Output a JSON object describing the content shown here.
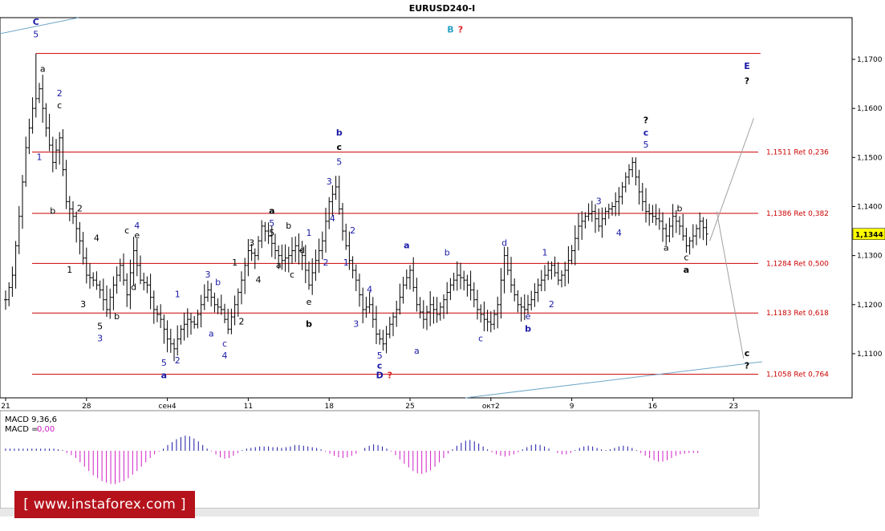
{
  "chart_data": {
    "type": "ohlc",
    "title": "EURUSD240-I",
    "price_axis": {
      "ticks": [
        "1,1700",
        "1,1600",
        "1,1500",
        "1,1400",
        "1,1300",
        "1,1200",
        "1,1100"
      ],
      "tick_values": [
        1.17,
        1.16,
        1.15,
        1.14,
        1.13,
        1.12,
        1.11
      ],
      "ylim": [
        1.101,
        1.1785
      ],
      "current_price": "1,1344",
      "current_value": 1.1344
    },
    "time_axis": {
      "ticks": [
        "21",
        "28",
        "сен4",
        "11",
        "18",
        "25",
        "окт2",
        "9",
        "16",
        "23"
      ],
      "tick_index": [
        0,
        24,
        48,
        72,
        96,
        120,
        144,
        168,
        192,
        216
      ],
      "bars_visible": 226
    },
    "retracement_levels": [
      {
        "label": "1,1511 Ret 0,236",
        "value": 1.1511
      },
      {
        "label": "1,1386 Ret 0,382",
        "value": 1.1386
      },
      {
        "label": "1,1284 Ret 0,500",
        "value": 1.1284
      },
      {
        "label": "1,1183 Ret 0,618",
        "value": 1.1183
      },
      {
        "label": "1,1058 Ret 0,764",
        "value": 1.1058
      }
    ],
    "top_level": {
      "value": 1.1712,
      "from_index": 9,
      "to_index": 224
    },
    "price_path": [
      [
        0,
        1.121
      ],
      [
        2,
        1.126
      ],
      [
        4,
        1.138
      ],
      [
        6,
        1.152
      ],
      [
        8,
        1.16
      ],
      [
        10,
        1.164
      ],
      [
        12,
        1.156
      ],
      [
        14,
        1.149
      ],
      [
        16,
        1.154
      ],
      [
        18,
        1.141
      ],
      [
        20,
        1.138
      ],
      [
        22,
        1.133
      ],
      [
        24,
        1.126
      ],
      [
        26,
        1.125
      ],
      [
        28,
        1.123
      ],
      [
        30,
        1.119
      ],
      [
        32,
        1.124
      ],
      [
        34,
        1.128
      ],
      [
        36,
        1.122
      ],
      [
        38,
        1.131
      ],
      [
        40,
        1.125
      ],
      [
        42,
        1.124
      ],
      [
        44,
        1.119
      ],
      [
        46,
        1.117
      ],
      [
        48,
        1.113
      ],
      [
        50,
        1.111
      ],
      [
        52,
        1.115
      ],
      [
        54,
        1.117
      ],
      [
        56,
        1.116
      ],
      [
        58,
        1.12
      ],
      [
        60,
        1.123
      ],
      [
        62,
        1.12
      ],
      [
        64,
        1.119
      ],
      [
        66,
        1.115
      ],
      [
        68,
        1.12
      ],
      [
        70,
        1.125
      ],
      [
        72,
        1.131
      ],
      [
        74,
        1.13
      ],
      [
        76,
        1.136
      ],
      [
        78,
        1.134
      ],
      [
        80,
        1.131
      ],
      [
        82,
        1.129
      ],
      [
        84,
        1.13
      ],
      [
        86,
        1.132
      ],
      [
        88,
        1.13
      ],
      [
        90,
        1.124
      ],
      [
        92,
        1.129
      ],
      [
        94,
        1.133
      ],
      [
        96,
        1.141
      ],
      [
        98,
        1.144
      ],
      [
        100,
        1.135
      ],
      [
        102,
        1.129
      ],
      [
        104,
        1.125
      ],
      [
        106,
        1.119
      ],
      [
        108,
        1.12
      ],
      [
        110,
        1.114
      ],
      [
        112,
        1.112
      ],
      [
        114,
        1.116
      ],
      [
        116,
        1.119
      ],
      [
        118,
        1.124
      ],
      [
        120,
        1.127
      ],
      [
        122,
        1.12
      ],
      [
        124,
        1.117
      ],
      [
        126,
        1.12
      ],
      [
        128,
        1.118
      ],
      [
        130,
        1.121
      ],
      [
        132,
        1.124
      ],
      [
        134,
        1.126
      ],
      [
        136,
        1.125
      ],
      [
        138,
        1.123
      ],
      [
        140,
        1.119
      ],
      [
        142,
        1.117
      ],
      [
        144,
        1.116
      ],
      [
        146,
        1.12
      ],
      [
        148,
        1.13
      ],
      [
        150,
        1.124
      ],
      [
        152,
        1.12
      ],
      [
        154,
        1.119
      ],
      [
        156,
        1.121
      ],
      [
        158,
        1.124
      ],
      [
        160,
        1.126
      ],
      [
        162,
        1.128
      ],
      [
        164,
        1.125
      ],
      [
        166,
        1.127
      ],
      [
        168,
        1.131
      ],
      [
        170,
        1.136
      ],
      [
        172,
        1.138
      ],
      [
        174,
        1.139
      ],
      [
        176,
        1.136
      ],
      [
        178,
        1.139
      ],
      [
        180,
        1.14
      ],
      [
        182,
        1.142
      ],
      [
        184,
        1.146
      ],
      [
        186,
        1.149
      ],
      [
        188,
        1.143
      ],
      [
        190,
        1.139
      ],
      [
        192,
        1.138
      ],
      [
        194,
        1.137
      ],
      [
        196,
        1.134
      ],
      [
        198,
        1.138
      ],
      [
        200,
        1.136
      ],
      [
        202,
        1.132
      ],
      [
        204,
        1.134
      ],
      [
        206,
        1.137
      ],
      [
        208,
        1.1344
      ]
    ],
    "wave_labels": [
      {
        "t": "C",
        "i": 9,
        "v": 1.177,
        "c": "#1a1aa6",
        "b": true
      },
      {
        "t": "5",
        "i": 9,
        "v": 1.1745,
        "c": "#1a1aa6"
      },
      {
        "t": "a",
        "i": 11,
        "v": 1.1675,
        "c": "#000"
      },
      {
        "t": "2",
        "i": 16,
        "v": 1.1625,
        "c": "#1a1aa6"
      },
      {
        "t": "c",
        "i": 16,
        "v": 1.16,
        "c": "#000"
      },
      {
        "t": "1",
        "i": 10,
        "v": 1.1495,
        "c": "#1a1aa6"
      },
      {
        "t": "b",
        "i": 14,
        "v": 1.1385,
        "c": "#000"
      },
      {
        "t": "2",
        "i": 22,
        "v": 1.139,
        "c": "#000"
      },
      {
        "t": "1",
        "i": 19,
        "v": 1.1265,
        "c": "#000"
      },
      {
        "t": "4",
        "i": 27,
        "v": 1.133,
        "c": "#000"
      },
      {
        "t": "3",
        "i": 23,
        "v": 1.1195,
        "c": "#000"
      },
      {
        "t": "5",
        "i": 28,
        "v": 1.115,
        "c": "#000"
      },
      {
        "t": "3",
        "i": 28,
        "v": 1.1125,
        "c": "#1a1aa6"
      },
      {
        "t": "b",
        "i": 33,
        "v": 1.117,
        "c": "#000"
      },
      {
        "t": "c",
        "i": 36,
        "v": 1.1345,
        "c": "#000"
      },
      {
        "t": "4",
        "i": 39,
        "v": 1.1355,
        "c": "#1a1aa6"
      },
      {
        "t": "e",
        "i": 39,
        "v": 1.1335,
        "c": "#000"
      },
      {
        "t": "d",
        "i": 38,
        "v": 1.123,
        "c": "#000"
      },
      {
        "t": "5",
        "i": 47,
        "v": 1.1075,
        "c": "#1a1aa6"
      },
      {
        "t": "a",
        "i": 47,
        "v": 1.105,
        "c": "#1a1aa6",
        "b": true
      },
      {
        "t": "1",
        "i": 51,
        "v": 1.1215,
        "c": "#1a1aa6"
      },
      {
        "t": "2",
        "i": 51,
        "v": 1.108,
        "c": "#1a1aa6"
      },
      {
        "t": "3",
        "i": 60,
        "v": 1.1255,
        "c": "#1a1aa6"
      },
      {
        "t": "b",
        "i": 63,
        "v": 1.124,
        "c": "#1a1aa6"
      },
      {
        "t": "a",
        "i": 61,
        "v": 1.1135,
        "c": "#1a1aa6"
      },
      {
        "t": "c",
        "i": 65,
        "v": 1.1115,
        "c": "#1a1aa6"
      },
      {
        "t": "4",
        "i": 65,
        "v": 1.109,
        "c": "#1a1aa6"
      },
      {
        "t": "2",
        "i": 70,
        "v": 1.116,
        "c": "#000"
      },
      {
        "t": "1",
        "i": 68,
        "v": 1.128,
        "c": "#000"
      },
      {
        "t": "3",
        "i": 73,
        "v": 1.132,
        "c": "#000"
      },
      {
        "t": "4",
        "i": 75,
        "v": 1.1245,
        "c": "#000"
      },
      {
        "t": "a",
        "i": 79,
        "v": 1.1385,
        "c": "#000",
        "b": true
      },
      {
        "t": "5",
        "i": 79,
        "v": 1.136,
        "c": "#1a1aa6"
      },
      {
        "t": "5",
        "i": 79,
        "v": 1.134,
        "c": "#000"
      },
      {
        "t": "a",
        "i": 81,
        "v": 1.1275,
        "c": "#000"
      },
      {
        "t": "b",
        "i": 84,
        "v": 1.1355,
        "c": "#000"
      },
      {
        "t": "c",
        "i": 85,
        "v": 1.1255,
        "c": "#000"
      },
      {
        "t": "d",
        "i": 88,
        "v": 1.1305,
        "c": "#000"
      },
      {
        "t": "1",
        "i": 90,
        "v": 1.134,
        "c": "#1a1aa6"
      },
      {
        "t": "e",
        "i": 90,
        "v": 1.12,
        "c": "#000"
      },
      {
        "t": "b",
        "i": 90,
        "v": 1.1155,
        "c": "#000",
        "b": true
      },
      {
        "t": "2",
        "i": 95,
        "v": 1.128,
        "c": "#1a1aa6"
      },
      {
        "t": "3",
        "i": 96,
        "v": 1.1445,
        "c": "#1a1aa6"
      },
      {
        "t": "b",
        "i": 99,
        "v": 1.1545,
        "c": "#1a1aa6",
        "b": true
      },
      {
        "t": "c",
        "i": 99,
        "v": 1.1515,
        "c": "#000",
        "b": true
      },
      {
        "t": "5",
        "i": 99,
        "v": 1.1485,
        "c": "#1a1aa6"
      },
      {
        "t": "4",
        "i": 97,
        "v": 1.137,
        "c": "#1a1aa6"
      },
      {
        "t": "2",
        "i": 103,
        "v": 1.1345,
        "c": "#1a1aa6"
      },
      {
        "t": "1",
        "i": 101,
        "v": 1.128,
        "c": "#1a1aa6"
      },
      {
        "t": "3",
        "i": 104,
        "v": 1.1155,
        "c": "#1a1aa6"
      },
      {
        "t": "4",
        "i": 108,
        "v": 1.1225,
        "c": "#1a1aa6"
      },
      {
        "t": "5",
        "i": 111,
        "v": 1.109,
        "c": "#1a1aa6"
      },
      {
        "t": "c",
        "i": 111,
        "v": 1.107,
        "c": "#1a1aa6",
        "b": true
      },
      {
        "t": "D",
        "i": 111,
        "v": 1.105,
        "c": "#1a1aa6",
        "b": true
      },
      {
        "t": "?",
        "i": 114,
        "v": 1.105,
        "c": "#e02020",
        "b": true
      },
      {
        "t": "a",
        "i": 119,
        "v": 1.1315,
        "c": "#1a1aa6",
        "b": true
      },
      {
        "t": "a",
        "i": 122,
        "v": 1.11,
        "c": "#1a1aa6"
      },
      {
        "t": "b",
        "i": 131,
        "v": 1.13,
        "c": "#1a1aa6"
      },
      {
        "t": "B",
        "i": 132,
        "v": 1.1755,
        "c": "#2ba0c8",
        "b": true
      },
      {
        "t": "?",
        "i": 135,
        "v": 1.1755,
        "c": "#e02020",
        "b": true
      },
      {
        "t": "c",
        "i": 141,
        "v": 1.1125,
        "c": "#1a1aa6"
      },
      {
        "t": "d",
        "i": 148,
        "v": 1.132,
        "c": "#1a1aa6"
      },
      {
        "t": "e",
        "i": 155,
        "v": 1.117,
        "c": "#1a1aa6"
      },
      {
        "t": "b",
        "i": 155,
        "v": 1.1145,
        "c": "#1a1aa6",
        "b": true
      },
      {
        "t": "1",
        "i": 160,
        "v": 1.13,
        "c": "#1a1aa6"
      },
      {
        "t": "2",
        "i": 162,
        "v": 1.1195,
        "c": "#1a1aa6"
      },
      {
        "t": "3",
        "i": 176,
        "v": 1.1405,
        "c": "#1a1aa6"
      },
      {
        "t": "4",
        "i": 182,
        "v": 1.134,
        "c": "#1a1aa6"
      },
      {
        "t": "?",
        "i": 190,
        "v": 1.157,
        "c": "#000",
        "b": true
      },
      {
        "t": "c",
        "i": 190,
        "v": 1.1545,
        "c": "#1a1aa6",
        "b": true
      },
      {
        "t": "5",
        "i": 190,
        "v": 1.152,
        "c": "#1a1aa6"
      },
      {
        "t": "b",
        "i": 200,
        "v": 1.139,
        "c": "#000"
      },
      {
        "t": "a",
        "i": 196,
        "v": 1.131,
        "c": "#000"
      },
      {
        "t": "c",
        "i": 202,
        "v": 1.129,
        "c": "#000"
      },
      {
        "t": "a",
        "i": 202,
        "v": 1.1265,
        "c": "#000",
        "b": true
      },
      {
        "t": "E",
        "i": 220,
        "v": 1.168,
        "c": "#1a1aa6",
        "b": true
      },
      {
        "t": "?",
        "i": 220,
        "v": 1.165,
        "c": "#000",
        "b": true
      },
      {
        "t": "c",
        "i": 220,
        "v": 1.1095,
        "c": "#000",
        "b": true
      },
      {
        "t": "?",
        "i": 220,
        "v": 1.107,
        "c": "#000",
        "b": true
      }
    ],
    "indicator": {
      "name": "MACD 9,36,6",
      "value_label": "MACD =",
      "value": "0,00",
      "hist": [
        0.3,
        0.3,
        0.3,
        0.3,
        0.3,
        0.3,
        0.3,
        0.3,
        0.3,
        0.3,
        0.3,
        0.3,
        0.2,
        0.1,
        -0.3,
        -0.6,
        -1,
        -1.6,
        -2.2,
        -2.8,
        -3.4,
        -3.8,
        -4.2,
        -4.4,
        -4.6,
        -4.6,
        -4.4,
        -4.2,
        -3.8,
        -3.3,
        -2.8,
        -2.2,
        -1.6,
        -1,
        -0.5,
        -0.1,
        0.3,
        0.8,
        1.2,
        1.6,
        1.9,
        2.1,
        2,
        1.7,
        1.3,
        0.8,
        0.3,
        -0.1,
        -0.5,
        -0.9,
        -1.1,
        -1,
        -0.7,
        -0.3,
        0.1,
        0.3,
        0.4,
        0.5,
        0.6,
        0.6,
        0.6,
        0.5,
        0.5,
        0.4,
        0.5,
        0.6,
        0.8,
        0.8,
        0.7,
        0.6,
        0.5,
        0.4,
        0.2,
        -0.1,
        -0.4,
        -0.7,
        -0.9,
        -1,
        -0.9,
        -0.7,
        -0.4,
        0,
        0.4,
        0.7,
        0.9,
        0.8,
        0.6,
        0.3,
        -0.1,
        -0.6,
        -1.2,
        -1.8,
        -2.3,
        -2.8,
        -3.1,
        -3.2,
        -3,
        -2.7,
        -2.2,
        -1.6,
        -1,
        -0.4,
        0.2,
        0.7,
        1.1,
        1.4,
        1.5,
        1.3,
        1,
        0.6,
        0.2,
        -0.2,
        -0.5,
        -0.7,
        -0.8,
        -0.7,
        -0.5,
        -0.2,
        0.2,
        0.5,
        0.8,
        0.9,
        0.8,
        0.6,
        0.3,
        0,
        -0.3,
        -0.5,
        -0.5,
        -0.3,
        0.1,
        0.4,
        0.6,
        0.7,
        0.6,
        0.4,
        0.2,
        0.1,
        0.2,
        0.4,
        0.6,
        0.7,
        0.6,
        0.4,
        0.1,
        -0.3,
        -0.7,
        -1,
        -1.3,
        -1.5,
        -1.5,
        -1.3,
        -1,
        -0.7,
        -0.5,
        -0.4,
        -0.3,
        -0.3,
        -0.3
      ],
      "pos_color": "#1a1aa6",
      "neg_color": "#d020c8"
    },
    "colors": {
      "retracement": "#cc0000",
      "trendline": "#6fa8c8",
      "projection": "#a0a0a0",
      "bars": "#000000",
      "price_marker_bg": "#ffff00"
    }
  },
  "watermark": "[ www.instaforex.com ]"
}
